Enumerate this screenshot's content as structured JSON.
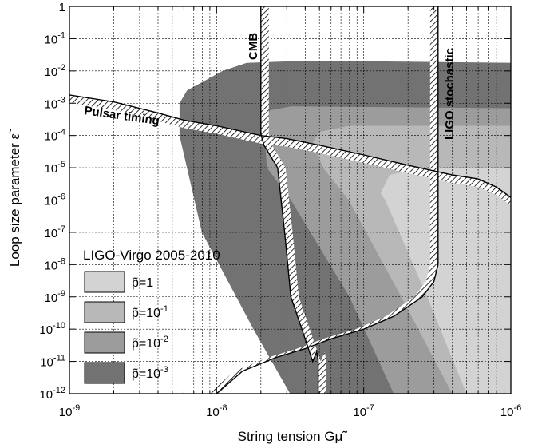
{
  "chart_data": {
    "type": "area",
    "xlabel": "String tension Gμ̃",
    "ylabel": "Loop size parameter ε̃",
    "xscale": "log",
    "yscale": "log",
    "xlim": [
      1e-09,
      1e-06
    ],
    "ylim": [
      1e-12,
      1
    ],
    "grid": true,
    "x_ticks": [
      {
        "value": 1e-09,
        "base": "10",
        "exp": "-9"
      },
      {
        "value": 1e-08,
        "base": "10",
        "exp": "-8"
      },
      {
        "value": 1e-07,
        "base": "10",
        "exp": "-7"
      },
      {
        "value": 1e-06,
        "base": "10",
        "exp": "-6"
      }
    ],
    "y_ticks": [
      {
        "value": 1,
        "base": "1",
        "exp": ""
      },
      {
        "value": 0.1,
        "base": "10",
        "exp": "-1"
      },
      {
        "value": 0.01,
        "base": "10",
        "exp": "-2"
      },
      {
        "value": 0.001,
        "base": "10",
        "exp": "-3"
      },
      {
        "value": 0.0001,
        "base": "10",
        "exp": "-4"
      },
      {
        "value": 1e-05,
        "base": "10",
        "exp": "-5"
      },
      {
        "value": 1e-06,
        "base": "10",
        "exp": "-6"
      },
      {
        "value": 1e-07,
        "base": "10",
        "exp": "-7"
      },
      {
        "value": 1e-08,
        "base": "10",
        "exp": "-8"
      },
      {
        "value": 1e-09,
        "base": "10",
        "exp": "-9"
      },
      {
        "value": 1e-10,
        "base": "10",
        "exp": "-10"
      },
      {
        "value": 1e-11,
        "base": "10",
        "exp": "-11"
      },
      {
        "value": 1e-12,
        "base": "10",
        "exp": "-12"
      }
    ],
    "legend": {
      "title": "LIGO-Virgo 2005-2010",
      "placement": "bottom-left",
      "entries": [
        {
          "base": "p̃=1",
          "exp": "",
          "color": "#d3d3d3"
        },
        {
          "base": "p̃=10",
          "exp": "-1",
          "color": "#b8b8b8"
        },
        {
          "base": "p̃=10",
          "exp": "-2",
          "color": "#9c9c9c"
        },
        {
          "base": "p̃=10",
          "exp": "-3",
          "color": "#727272"
        }
      ]
    },
    "regions": [
      {
        "name": "p̃=10-3",
        "color": "#727272",
        "boundary": [
          [
            3.16e-08,
            1e-12
          ],
          [
            1.78e-08,
            1e-10
          ],
          [
            7.94e-09,
            1e-07
          ],
          [
            5.6e-09,
            0.0001
          ],
          [
            5.6e-09,
            0.001
          ],
          [
            6.3e-09,
            0.0025
          ],
          [
            1.1e-08,
            0.01
          ],
          [
            1.6e-08,
            0.0178
          ],
          [
            3.16e-08,
            0.02
          ],
          [
            1e-07,
            0.02
          ],
          [
            1e-06,
            0.0178
          ],
          [
            1e-06,
            1e-12
          ]
        ]
      },
      {
        "name": "p̃=10-2",
        "color": "#9c9c9c",
        "boundary": [
          [
            1.6e-07,
            1e-12
          ],
          [
            8e-08,
            1e-09
          ],
          [
            3.2e-08,
            1e-06
          ],
          [
            2.2e-08,
            1e-05
          ],
          [
            2.1e-08,
            0.00013
          ],
          [
            2.3e-08,
            0.0006
          ],
          [
            3.2e-08,
            0.0008
          ],
          [
            1e-06,
            0.0007
          ],
          [
            1e-06,
            1e-12
          ]
        ]
      },
      {
        "name": "p̃=10-1",
        "color": "#b8b8b8",
        "boundary": [
          [
            4e-07,
            1e-12
          ],
          [
            1.8e-07,
            1e-09
          ],
          [
            7.9e-08,
            1e-06
          ],
          [
            5.3e-08,
            1e-05
          ],
          [
            4.5e-08,
            6e-05
          ],
          [
            5e-08,
            0.00013
          ],
          [
            8e-08,
            0.0002
          ],
          [
            1e-06,
            0.0002
          ],
          [
            1e-06,
            1e-12
          ]
        ]
      },
      {
        "name": "p̃=1",
        "color": "#d3d3d3",
        "boundary": [
          [
            1e-06,
            1e-12
          ],
          [
            5e-07,
            1e-12
          ],
          [
            2.7e-07,
            1e-09
          ],
          [
            1.4e-07,
            1e-06
          ],
          [
            1.3e-07,
            1.6e-06
          ],
          [
            1.5e-07,
            6e-06
          ],
          [
            2.5e-07,
            1e-05
          ],
          [
            1e-06,
            1e-05
          ]
        ]
      },
      {
        "name": "p̃=1 corner",
        "color": "#d3d3d3",
        "boundary": [
          [
            1e-06,
            1e-12
          ],
          [
            7e-07,
            1e-12
          ],
          [
            5.6e-07,
            1e-09
          ],
          [
            6e-07,
            1e-08
          ],
          [
            7.5e-07,
            1.5e-08
          ],
          [
            1e-06,
            1.5e-08
          ]
        ]
      }
    ],
    "constraints": [
      {
        "label": "Pulsar timing",
        "x": [
          1e-09,
          2e-09,
          4e-09,
          6e-09,
          1e-08,
          2e-08,
          3e-08,
          5e-08,
          1e-07,
          2e-07,
          4e-07,
          6e-07,
          8e-07,
          1e-06
        ],
        "y": [
          0.0018,
          0.0011,
          0.0005,
          0.0003,
          0.0002,
          0.0001,
          8e-05,
          5e-05,
          2.5e-05,
          1.2e-05,
          6e-06,
          4.5e-06,
          2.5e-06,
          1.2e-06
        ]
      },
      {
        "label": "CMB",
        "x": [
          2e-08,
          2e-08,
          2.1e-08,
          2.6e-08,
          2.9e-08,
          3.2e-08,
          3.8e-08,
          4.5e-08,
          4.8e-08,
          4.9e-08,
          4.9e-08
        ],
        "y": [
          1,
          0.00011,
          5e-05,
          1e-05,
          1e-07,
          1e-09,
          1e-10,
          1e-11,
          2e-11,
          1e-11,
          1e-12
        ]
      },
      {
        "label": "LIGO stochastic",
        "x": [
          3.2e-07,
          3.2e-07,
          3e-07,
          2.5e-07,
          1.6e-07,
          1e-07,
          6e-08,
          4e-08,
          2.5e-08,
          1.5e-08,
          1e-08
        ],
        "y": [
          1,
          1e-08,
          3e-09,
          1e-09,
          2.5e-10,
          1e-10,
          5e-11,
          2.5e-11,
          1.3e-11,
          5e-12,
          1e-12
        ]
      }
    ]
  }
}
